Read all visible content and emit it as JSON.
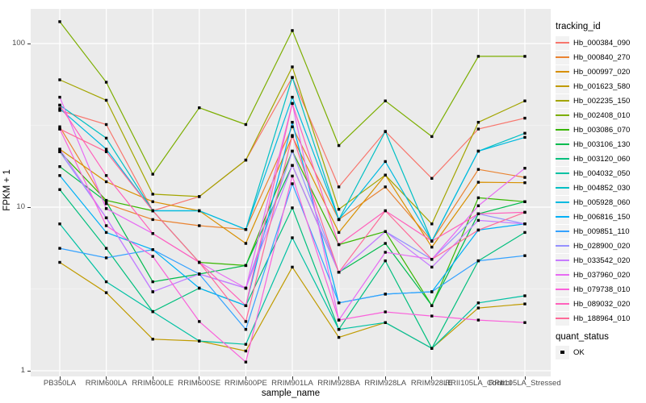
{
  "chart_data": {
    "type": "line",
    "title": "",
    "xlabel": "sample_name",
    "ylabel": "FPKM + 1",
    "y_scale": "log10",
    "ylim": [
      0.92,
      163
    ],
    "grid": "on",
    "legend_position": "right",
    "panel_bg": "#EBEBEB",
    "grid_color": "#FFFFFF",
    "tick_label_color": "#4D4D4D",
    "point_color": "#000000",
    "point_shape": "square",
    "y_ticks": [
      1,
      10,
      100
    ],
    "y_tick_labels": [
      "1",
      "10",
      "100"
    ],
    "y_minor": [
      3.1623,
      31.623
    ],
    "categories": [
      "PB350LA",
      "RRIM600LA",
      "RRIM600LE",
      "RRIM600SE",
      "RRIM600PE",
      "RRIM901LA",
      "RRIM928BA",
      "RRIM928LA",
      "RRIM928LE",
      "RRII105LA_Control",
      "RRII105LA_Stressed"
    ],
    "legend": {
      "title": "tracking_id"
    },
    "legend2": {
      "title": "quant_status",
      "items": [
        {
          "label": "OK",
          "shape": "square",
          "color": "#000000"
        }
      ]
    },
    "series": [
      {
        "name": "Hb_000384_090",
        "color": "#F8766D",
        "values": [
          39,
          32,
          9.5,
          11.6,
          19.4,
          62,
          13.3,
          29,
          15,
          30,
          35
        ]
      },
      {
        "name": "Hb_000840_270",
        "color": "#EA8331",
        "values": [
          31,
          10.5,
          8.4,
          7.7,
          7.3,
          31,
          8.4,
          13.3,
          6.2,
          17,
          15.2
        ]
      },
      {
        "name": "Hb_000997_020",
        "color": "#D89000",
        "values": [
          22.6,
          14.3,
          10.8,
          9.5,
          6.0,
          27,
          7.0,
          15.7,
          5.7,
          14.2,
          14.1
        ]
      },
      {
        "name": "Hb_001623_580",
        "color": "#C09B00",
        "values": [
          4.6,
          3.0,
          1.56,
          1.52,
          1.32,
          4.3,
          1.6,
          1.97,
          1.37,
          2.42,
          2.56
        ]
      },
      {
        "name": "Hb_002235_150",
        "color": "#A3A500",
        "values": [
          60,
          45,
          12,
          11.6,
          19.4,
          72,
          9.7,
          15.7,
          7.9,
          33,
          44.6
        ]
      },
      {
        "name": "Hb_002408_010",
        "color": "#7CAE00",
        "values": [
          136,
          58,
          15.9,
          40.5,
          32,
          120,
          23.8,
          44.6,
          27,
          83.5,
          83.5
        ]
      },
      {
        "name": "Hb_003086_070",
        "color": "#39B600",
        "values": [
          21.8,
          11,
          9.5,
          4.6,
          4.4,
          22,
          5.9,
          7.1,
          2.5,
          11.4,
          10.8
        ]
      },
      {
        "name": "Hb_003106_130",
        "color": "#00BB4E",
        "values": [
          17.7,
          10.8,
          3.5,
          3.9,
          4.4,
          18,
          4.0,
          6.0,
          2.5,
          9.1,
          10.8
        ]
      },
      {
        "name": "Hb_003120_060",
        "color": "#00BF7D",
        "values": [
          12.8,
          5.6,
          2.3,
          3.2,
          2.5,
          9.9,
          1.79,
          4.7,
          1.37,
          4.7,
          7.0
        ]
      },
      {
        "name": "Hb_004032_050",
        "color": "#00C1A3",
        "values": [
          7.9,
          3.5,
          2.3,
          1.52,
          1.45,
          6.5,
          1.79,
          1.97,
          1.37,
          2.6,
          2.87
        ]
      },
      {
        "name": "Hb_004852_030",
        "color": "#00BFC4",
        "values": [
          42,
          26.4,
          9.5,
          9.5,
          7.3,
          62,
          8.4,
          29,
          6.2,
          22,
          28.3
        ]
      },
      {
        "name": "Hb_005928_060",
        "color": "#00BAE0",
        "values": [
          40,
          22.6,
          9.5,
          9.5,
          7.3,
          47,
          8.4,
          19,
          6.2,
          22,
          26.7
        ]
      },
      {
        "name": "Hb_006816_150",
        "color": "#00B0F6",
        "values": [
          15.6,
          7.0,
          5.5,
          3.2,
          2.5,
          33,
          2.6,
          2.94,
          3.04,
          7.25,
          7.9
        ]
      },
      {
        "name": "Hb_009851_110",
        "color": "#35A2FF",
        "values": [
          5.6,
          4.9,
          5.5,
          3.9,
          1.79,
          13.9,
          2.6,
          2.94,
          3.04,
          4.7,
          5.05
        ]
      },
      {
        "name": "Hb_028900_020",
        "color": "#9590FF",
        "values": [
          21.8,
          8.6,
          3.04,
          3.9,
          3.2,
          22,
          4.0,
          7.1,
          4.8,
          9.1,
          7.9
        ]
      },
      {
        "name": "Hb_033542_020",
        "color": "#C77CFF",
        "values": [
          22.6,
          8.6,
          3.04,
          3.9,
          3.2,
          18,
          4.0,
          7.1,
          4.3,
          8.3,
          7.9
        ]
      },
      {
        "name": "Hb_037960_020",
        "color": "#E76BF3",
        "values": [
          47,
          9.8,
          6.9,
          4.6,
          3.2,
          43,
          2.04,
          5.3,
          4.8,
          10.2,
          17.3
        ]
      },
      {
        "name": "Hb_079738_010",
        "color": "#FA62DB",
        "values": [
          30,
          7.7,
          5.0,
          2.0,
          1.13,
          15.5,
          2.04,
          2.29,
          2.16,
          2.04,
          1.97
        ]
      },
      {
        "name": "Hb_089032_020",
        "color": "#FF62BC",
        "values": [
          42,
          15.6,
          6.9,
          4.6,
          2.5,
          43,
          5.9,
          9.5,
          6.2,
          9.1,
          9.3
        ]
      },
      {
        "name": "Hb_188964_010",
        "color": "#FF6A98",
        "values": [
          30,
          21.8,
          9.5,
          4.6,
          2.0,
          27.4,
          4.0,
          9.5,
          4.8,
          7.25,
          9.3
        ]
      }
    ]
  }
}
